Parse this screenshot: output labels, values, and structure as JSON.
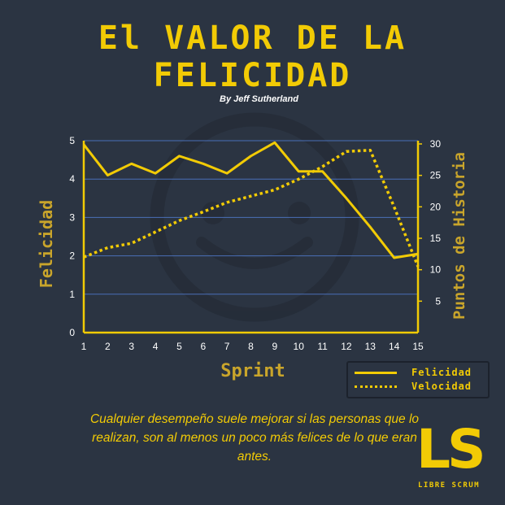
{
  "header": {
    "title_line1": "El VALOR DE LA",
    "title_line2": "FELICIDAD",
    "byline": "By Jeff Sutherland"
  },
  "chart_data": {
    "type": "line",
    "x": [
      1,
      2,
      3,
      4,
      5,
      6,
      7,
      8,
      9,
      10,
      11,
      12,
      13,
      14,
      15
    ],
    "xlabel": "Sprint",
    "ylabel_left": "Felicidad",
    "ylabel_right": "Puntos de Historia",
    "ylim_left": [
      0,
      5
    ],
    "ylim_right": [
      0,
      30
    ],
    "left_ticks": [
      0,
      1,
      2,
      3,
      4,
      5
    ],
    "right_ticks": [
      5,
      10,
      15,
      20,
      25,
      30
    ],
    "grid": true,
    "legend_position": "bottom-right",
    "series": [
      {
        "name": "Felicidad",
        "axis": "left",
        "style": "solid",
        "color": "#f2cb05",
        "values": [
          4.9,
          4.1,
          4.4,
          4.15,
          4.6,
          4.4,
          4.15,
          4.6,
          4.95,
          4.2,
          4.2,
          3.5,
          2.75,
          1.95,
          2.05
        ]
      },
      {
        "name": "Velocidad",
        "axis": "right",
        "style": "dotted",
        "color": "#f2cb05",
        "values": [
          12.0,
          13.5,
          14.2,
          16.0,
          17.8,
          19.2,
          20.7,
          21.7,
          22.7,
          24.4,
          26.4,
          28.8,
          29.0,
          20.0,
          10.5
        ]
      }
    ]
  },
  "quote": {
    "text": "Cualquier desempeño suele mejorar si las personas que lo realizan, son al menos un poco más felices de lo que eran antes."
  },
  "logo": {
    "mark": "LS",
    "subtitle": "LIBRE SCRUM"
  },
  "colors": {
    "background": "#2b3442",
    "accent": "#f2cb05",
    "grid": "#4a6fb8"
  }
}
